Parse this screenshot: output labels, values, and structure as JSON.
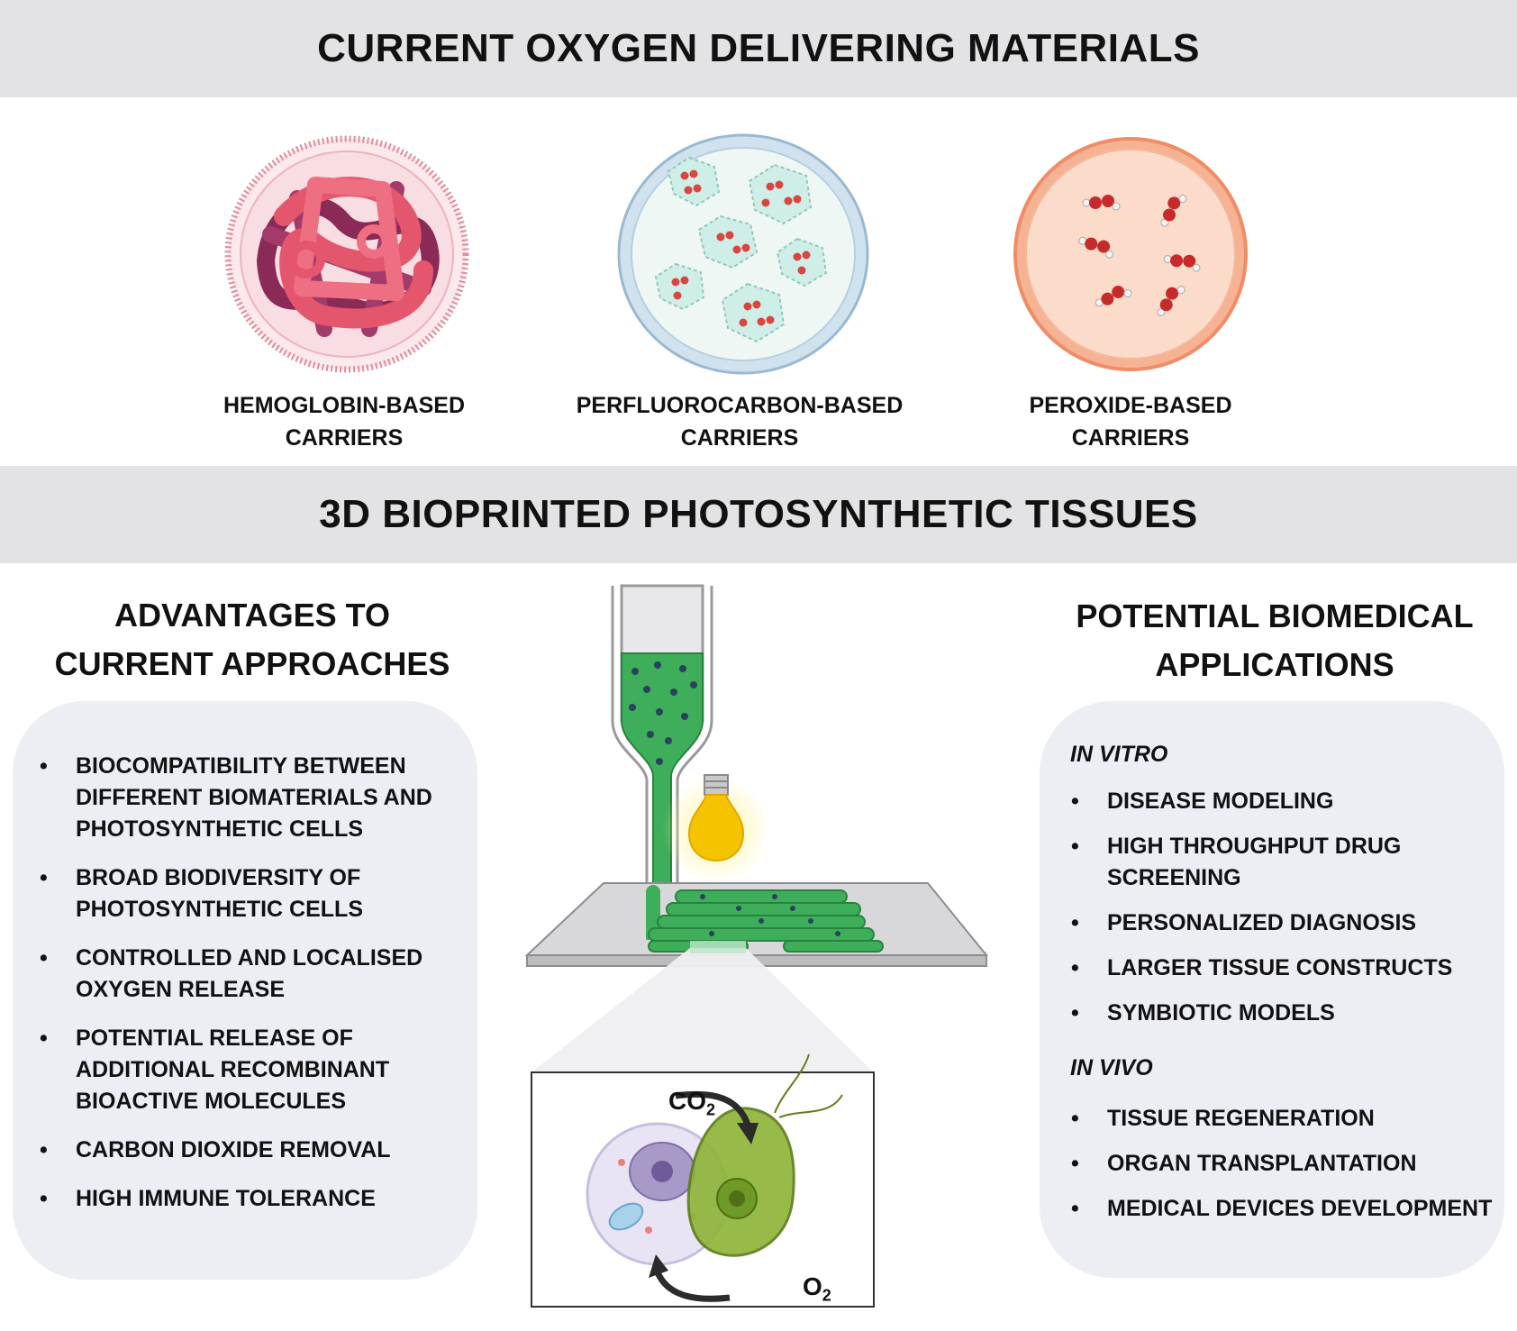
{
  "top_banner": {
    "title": "CURRENT OXYGEN DELIVERING MATERIALS"
  },
  "carriers": [
    {
      "line1": "HEMOGLOBIN-BASED",
      "line2": "CARRIERS"
    },
    {
      "line1": "PERFLUOROCARBON-BASED",
      "line2": "CARRIERS"
    },
    {
      "line1": "PEROXIDE-BASED",
      "line2": "CARRIERS"
    }
  ],
  "middle_banner": {
    "title": "3D BIOPRINTED PHOTOSYNTHETIC TISSUES"
  },
  "advantages": {
    "heading_line1": "ADVANTAGES TO",
    "heading_line2": "CURRENT APPROACHES",
    "items": [
      "BIOCOMPATIBILITY BETWEEN DIFFERENT BIOMATERIALS AND PHOTOSYNTHETIC CELLS",
      "BROAD BIODIVERSITY OF PHOTOSYNTHETIC CELLS",
      "CONTROLLED AND LOCALISED OXYGEN RELEASE",
      "POTENTIAL RELEASE OF ADDITIONAL RECOMBINANT BIOACTIVE MOLECULES",
      "CARBON DIOXIDE REMOVAL",
      "HIGH IMMUNE TOLERANCE"
    ]
  },
  "applications": {
    "heading_line1": "POTENTIAL BIOMEDICAL",
    "heading_line2": "APPLICATIONS",
    "in_vitro": {
      "label": "IN VITRO",
      "items": [
        "DISEASE MODELING",
        "HIGH THROUGHPUT DRUG SCREENING",
        "PERSONALIZED DIAGNOSIS",
        "LARGER TISSUE CONSTRUCTS",
        "SYMBIOTIC MODELS"
      ]
    },
    "in_vivo": {
      "label": "IN VIVO",
      "items": [
        "TISSUE REGENERATION",
        "ORGAN TRANSPLANTATION",
        "MEDICAL DEVICES DEVELOPMENT"
      ]
    }
  },
  "gas_exchange": {
    "co2_main": "CO",
    "co2_sub": "2",
    "o2_main": "O",
    "o2_sub": "2"
  },
  "colors": {
    "banner": "#e3e3e5",
    "panel": "#eceef4",
    "hemoglobin": "#e4566c",
    "perfluorocarbon": "#d4ecf0",
    "peroxide": "#f6b394",
    "bioink_green": "#3fae5a",
    "algae_green": "#8fb53a",
    "bulb_yellow": "#f5c400"
  }
}
